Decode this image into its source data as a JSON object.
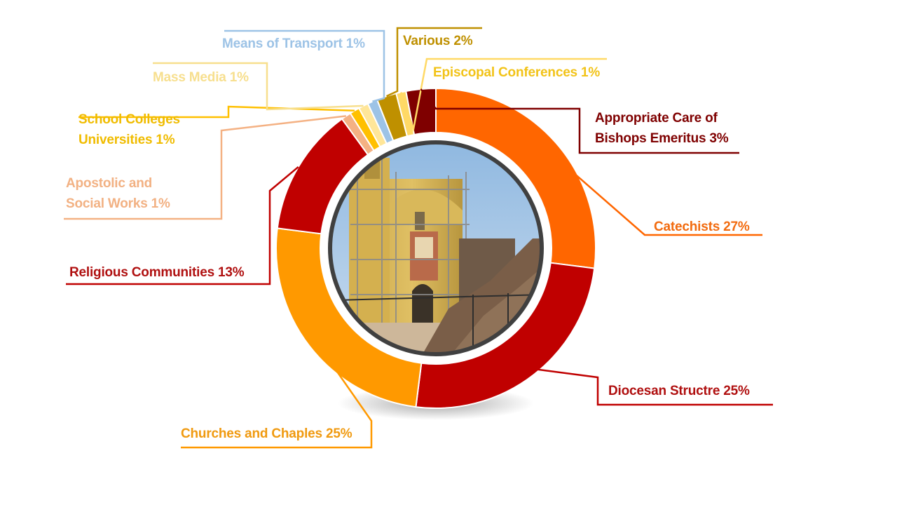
{
  "chart_data": {
    "type": "pie",
    "variant": "donut",
    "title": "",
    "center_image": "church-under-restoration-photo",
    "legend": "none",
    "slices": [
      {
        "label": "Catechists 27%",
        "value": 27,
        "color": "#ff6600"
      },
      {
        "label": "Diocesan Structre 25%",
        "value": 25,
        "color": "#c00000"
      },
      {
        "label": "Churches and Chaples 25%",
        "value": 25,
        "color": "#ff9900"
      },
      {
        "label": "Religious Communities 13%",
        "value": 13,
        "color": "#c00000"
      },
      {
        "label": "Apostolic and Social Works 1%",
        "value": 1,
        "color": "#f4b183"
      },
      {
        "label": "School Colleges Universities 1%",
        "value": 1,
        "color": "#ffc000"
      },
      {
        "label": "Mass Media 1%",
        "value": 1,
        "color": "#ffe699"
      },
      {
        "label": "Means of Transport 1%",
        "value": 1,
        "color": "#9dc3e6"
      },
      {
        "label": "Various 2%",
        "value": 2,
        "color": "#bf9000"
      },
      {
        "label": "Episcopal Conferences 1%",
        "value": 1,
        "color": "#ffd966"
      },
      {
        "label": "Appropriate Care of Bishops Emeritus 3%",
        "value": 3,
        "color": "#7f0000"
      }
    ]
  },
  "labels": {
    "catechists": "Catechists 27%",
    "diocesan": "Diocesan Structre 25%",
    "churches": "Churches and Chaples 25%",
    "religious": "Religious Communities 13%",
    "apostolic_1": "Apostolic and",
    "apostolic_2": "Social Works 1%",
    "school_1": "School Colleges",
    "school_2": "Universities 1%",
    "mass_media": "Mass Media 1%",
    "transport": "Means of Transport 1%",
    "various": "Various 2%",
    "episcopal": "Episcopal Conferences 1%",
    "bishops_1": "Appropriate Care of",
    "bishops_2": "Bishops Emeritus 3%"
  }
}
